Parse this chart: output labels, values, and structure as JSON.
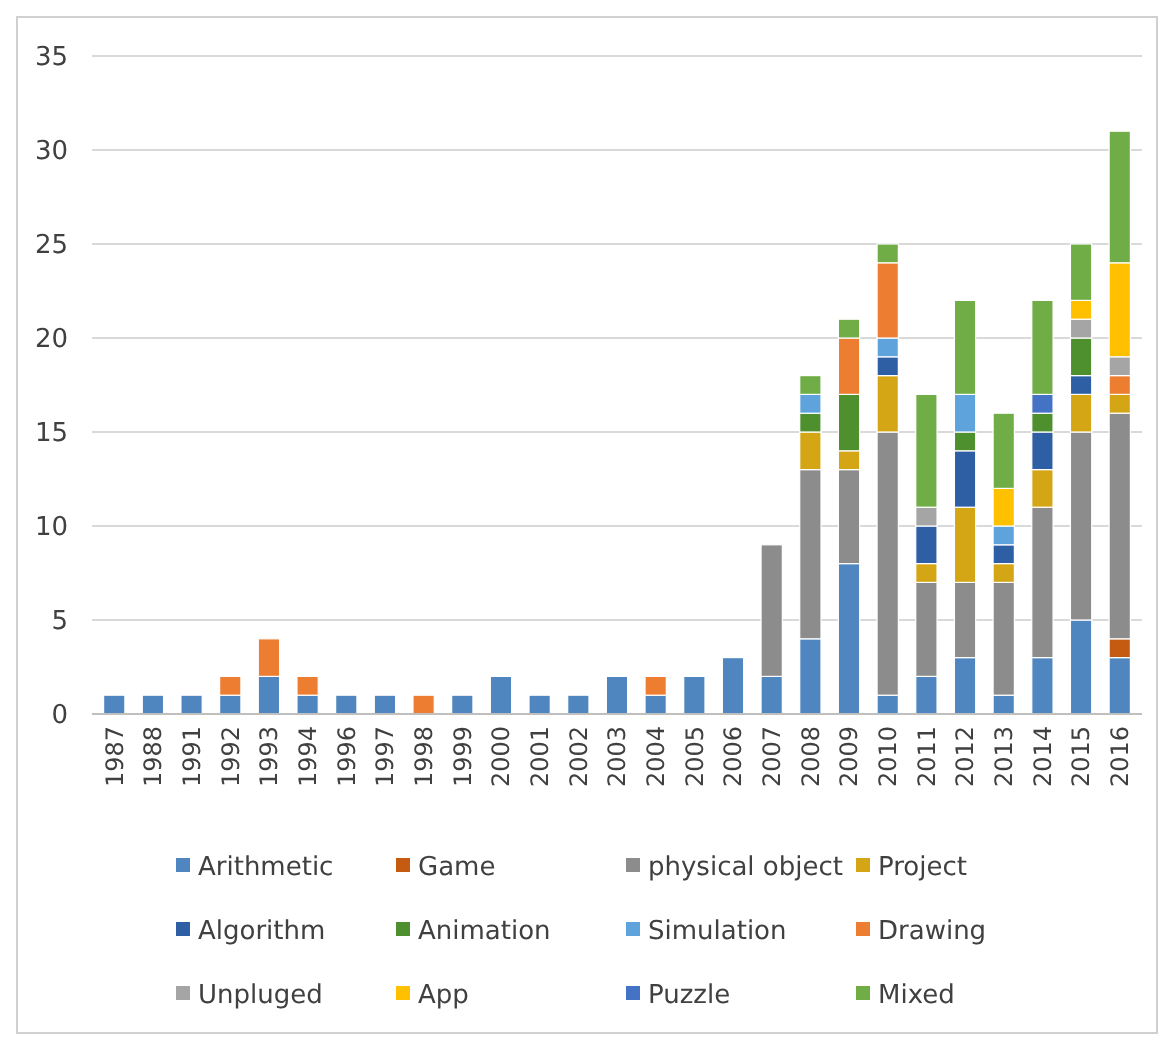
{
  "chart_data": {
    "type": "bar",
    "stacked": true,
    "categories": [
      "1987",
      "1988",
      "1991",
      "1992",
      "1993",
      "1994",
      "1996",
      "1997",
      "1998",
      "1999",
      "2000",
      "2001",
      "2002",
      "2003",
      "2004",
      "2005",
      "2006",
      "2007",
      "2008",
      "2009",
      "2010",
      "2011",
      "2012",
      "2013",
      "2014",
      "2015",
      "2016"
    ],
    "ylim": [
      0,
      35
    ],
    "yticks": [
      0,
      5,
      10,
      15,
      20,
      25,
      30,
      35
    ],
    "grid": "y",
    "legend": "bottom",
    "series": [
      {
        "name": "Arithmetic",
        "color": "#4f86c0",
        "values": [
          1,
          1,
          1,
          1,
          2,
          1,
          1,
          1,
          0,
          1,
          2,
          1,
          1,
          2,
          1,
          2,
          3,
          2,
          4,
          8,
          1,
          2,
          3,
          1,
          3,
          5,
          3
        ]
      },
      {
        "name": "Game",
        "color": "#c55a11",
        "values": [
          0,
          0,
          0,
          0,
          0,
          0,
          0,
          0,
          0,
          0,
          0,
          0,
          0,
          0,
          0,
          0,
          0,
          0,
          0,
          0,
          0,
          0,
          0,
          0,
          0,
          0,
          1
        ]
      },
      {
        "name": "physical object",
        "color": "#8c8c8c",
        "values": [
          0,
          0,
          0,
          0,
          0,
          0,
          0,
          0,
          0,
          0,
          0,
          0,
          0,
          0,
          0,
          0,
          0,
          7,
          9,
          5,
          14,
          5,
          4,
          6,
          8,
          10,
          12
        ]
      },
      {
        "name": "Project",
        "color": "#d4a514",
        "values": [
          0,
          0,
          0,
          0,
          0,
          0,
          0,
          0,
          0,
          0,
          0,
          0,
          0,
          0,
          0,
          0,
          0,
          0,
          2,
          1,
          3,
          1,
          4,
          1,
          2,
          2,
          1
        ]
      },
      {
        "name": "Algorithm",
        "color": "#2e5ea3",
        "values": [
          0,
          0,
          0,
          0,
          0,
          0,
          0,
          0,
          0,
          0,
          0,
          0,
          0,
          0,
          0,
          0,
          0,
          0,
          0,
          0,
          1,
          2,
          3,
          1,
          2,
          1,
          0
        ]
      },
      {
        "name": "Animation",
        "color": "#4e8f2e",
        "values": [
          0,
          0,
          0,
          0,
          0,
          0,
          0,
          0,
          0,
          0,
          0,
          0,
          0,
          0,
          0,
          0,
          0,
          0,
          1,
          3,
          0,
          0,
          1,
          0,
          1,
          2,
          0
        ]
      },
      {
        "name": "Simulation",
        "color": "#5ea3dc",
        "values": [
          0,
          0,
          0,
          0,
          0,
          0,
          0,
          0,
          0,
          0,
          0,
          0,
          0,
          0,
          0,
          0,
          0,
          0,
          1,
          0,
          1,
          0,
          2,
          1,
          0,
          0,
          0
        ]
      },
      {
        "name": "Drawing",
        "color": "#ed7d31",
        "values": [
          0,
          0,
          0,
          1,
          2,
          1,
          0,
          0,
          1,
          0,
          0,
          0,
          0,
          0,
          1,
          0,
          0,
          0,
          0,
          3,
          4,
          0,
          0,
          0,
          0,
          0,
          1
        ]
      },
      {
        "name": "Unpluged",
        "color": "#a5a5a5",
        "values": [
          0,
          0,
          0,
          0,
          0,
          0,
          0,
          0,
          0,
          0,
          0,
          0,
          0,
          0,
          0,
          0,
          0,
          0,
          0,
          0,
          0,
          1,
          0,
          0,
          0,
          1,
          1
        ]
      },
      {
        "name": "App",
        "color": "#ffc000",
        "values": [
          0,
          0,
          0,
          0,
          0,
          0,
          0,
          0,
          0,
          0,
          0,
          0,
          0,
          0,
          0,
          0,
          0,
          0,
          0,
          0,
          0,
          0,
          0,
          2,
          0,
          1,
          5
        ]
      },
      {
        "name": "Puzzle",
        "color": "#4472c4",
        "values": [
          0,
          0,
          0,
          0,
          0,
          0,
          0,
          0,
          0,
          0,
          0,
          0,
          0,
          0,
          0,
          0,
          0,
          0,
          0,
          0,
          0,
          0,
          0,
          0,
          1,
          0,
          0
        ]
      },
      {
        "name": "Mixed",
        "color": "#70ad47",
        "values": [
          0,
          0,
          0,
          0,
          0,
          0,
          0,
          0,
          0,
          0,
          0,
          0,
          0,
          0,
          0,
          0,
          0,
          0,
          1,
          1,
          1,
          6,
          5,
          4,
          5,
          3,
          7
        ]
      }
    ]
  }
}
